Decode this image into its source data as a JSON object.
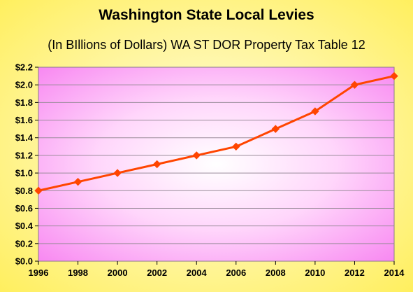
{
  "chart_data": {
    "type": "line",
    "title": "Washington State Local Levies",
    "subtitle": "(In BIllions of Dollars) WA ST DOR Property Tax Table 12",
    "xlabel": "",
    "ylabel": "",
    "x": [
      1996,
      1998,
      2000,
      2002,
      2004,
      2006,
      2008,
      2010,
      2012,
      2014
    ],
    "x_tick_labels": [
      "1996",
      "1998",
      "2000",
      "2002",
      "2004",
      "2006",
      "2008",
      "2010",
      "2012",
      "2014"
    ],
    "y_ticks": [
      0.0,
      0.2,
      0.4,
      0.6,
      0.8,
      1.0,
      1.2,
      1.4,
      1.6,
      1.8,
      2.0,
      2.2
    ],
    "y_tick_labels": [
      "$0.0",
      "$0.2",
      "$0.4",
      "$0.6",
      "$0.8",
      "$1.0",
      "$1.2",
      "$1.4",
      "$1.6",
      "$1.8",
      "$2.0",
      "$2.2"
    ],
    "ylim": [
      0,
      2.2
    ],
    "series": [
      {
        "values": [
          0.8,
          0.9,
          1.0,
          1.1,
          1.2,
          1.3,
          1.5,
          1.7,
          2.0,
          2.1
        ],
        "color": "#ff4500",
        "marker": "diamond"
      }
    ],
    "grid": true,
    "legend": "none",
    "plot_background": "pink-white radial gradient",
    "page_background": "yellow gradient"
  }
}
